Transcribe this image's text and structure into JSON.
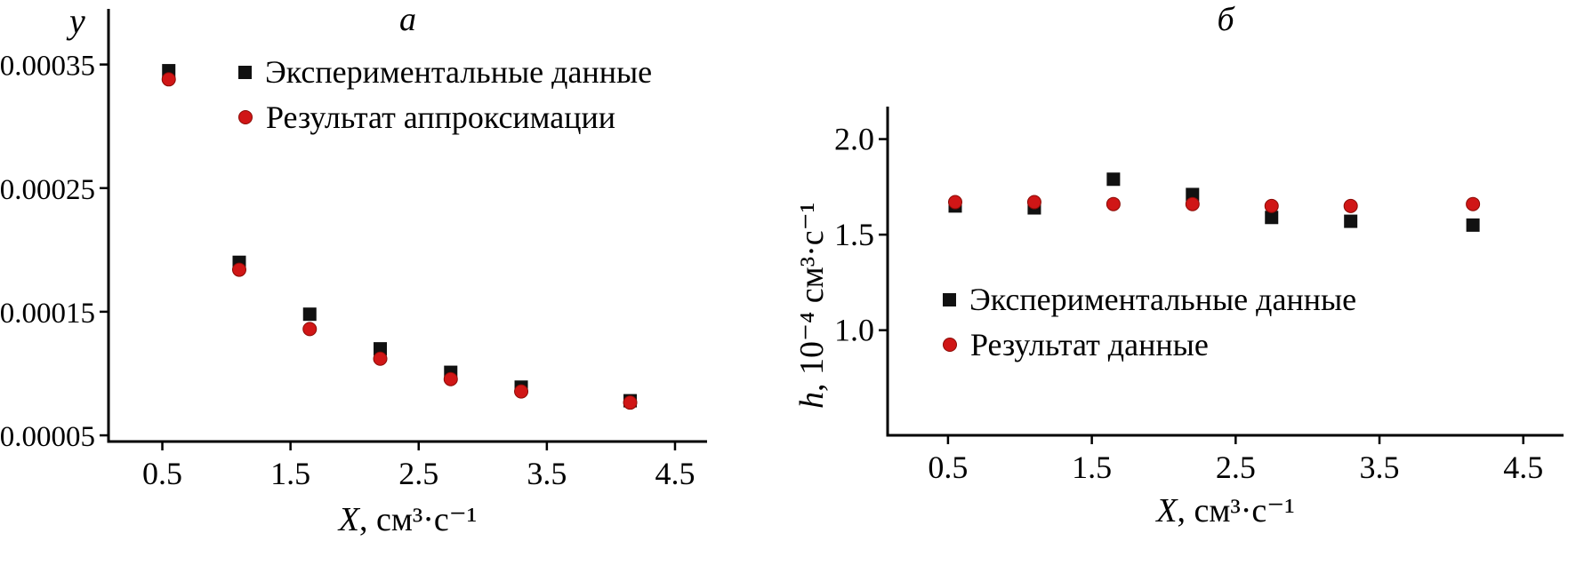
{
  "figure": {
    "background": "#ffffff"
  },
  "colors": {
    "experimental": "#111111",
    "approximation": "#d01616",
    "axis": "#000000"
  },
  "chart_data": [
    {
      "type": "scatter",
      "title": "а",
      "ylabel_var": "y",
      "ylabel_unit": "",
      "xlabel_var": "X",
      "xlabel_unit": ", см³·с⁻¹",
      "xlim": [
        0.08,
        4.75
      ],
      "ylim": [
        4.5e-05,
        0.000395
      ],
      "xtick_values": [
        0.5,
        1.5,
        2.5,
        3.5,
        4.5
      ],
      "xtick_labels": [
        "0.5",
        "1.5",
        "2.5",
        "3.5",
        "4.5"
      ],
      "ytick_values": [
        5e-05,
        0.00015,
        0.00025,
        0.00035
      ],
      "ytick_labels": [
        "0.00005",
        "0.00015",
        "0.00025",
        "0.00035"
      ],
      "grid": false,
      "legend_position": "inside-upper-left",
      "x": [
        0.55,
        1.1,
        1.65,
        2.2,
        2.75,
        3.3,
        4.15
      ],
      "series": [
        {
          "name": "Экспериментальные данные",
          "marker": "square",
          "color": "#111111",
          "values": [
            0.000345,
            0.00019,
            0.000148,
            0.00012,
            0.000101,
            8.9e-05,
            7.8e-05
          ]
        },
        {
          "name": "Результат аппроксимации",
          "marker": "circle",
          "color": "#d01616",
          "values": [
            0.000338,
            0.000184,
            0.000136,
            0.000112,
            9.55e-05,
            8.55e-05,
            7.65e-05
          ]
        }
      ]
    },
    {
      "type": "scatter",
      "title": "б",
      "ylabel_var": "h",
      "ylabel_unit": ", 10⁻⁴ см³·с⁻¹",
      "xlabel_var": "X",
      "xlabel_unit": ", см³·с⁻¹",
      "xlim": [
        0.08,
        4.78
      ],
      "ylim": [
        0.45,
        2.17
      ],
      "xtick_values": [
        0.5,
        1.5,
        2.5,
        3.5,
        4.5
      ],
      "xtick_labels": [
        "0.5",
        "1.5",
        "2.5",
        "3.5",
        "4.5"
      ],
      "ytick_values": [
        1.0,
        1.5,
        2.0
      ],
      "ytick_labels": [
        "1.0",
        "1.5",
        "2.0"
      ],
      "grid": false,
      "legend_position": "inside-lower-center",
      "x": [
        0.55,
        1.1,
        1.65,
        2.2,
        2.75,
        3.3,
        4.15
      ],
      "series": [
        {
          "name": "Экспериментальные данные",
          "marker": "square",
          "color": "#111111",
          "values": [
            1.65,
            1.64,
            1.79,
            1.71,
            1.59,
            1.57,
            1.55
          ]
        },
        {
          "name": "Результат данные",
          "marker": "circle",
          "color": "#d01616",
          "values": [
            1.67,
            1.67,
            1.66,
            1.66,
            1.65,
            1.65,
            1.66
          ]
        }
      ]
    }
  ]
}
